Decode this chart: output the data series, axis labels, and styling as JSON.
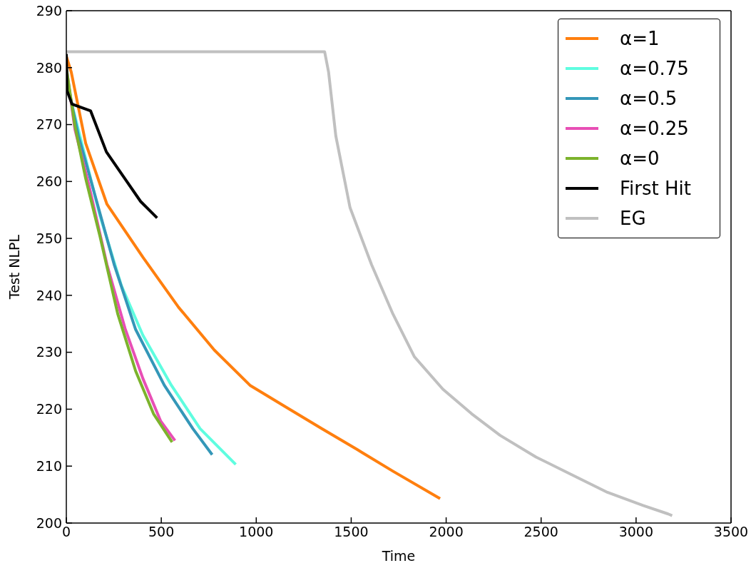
{
  "chart_data": {
    "type": "line",
    "xlabel": "Time",
    "ylabel": "Test NLPL",
    "xlim": [
      0,
      3500
    ],
    "ylim": [
      200,
      290
    ],
    "xticks": [
      0,
      500,
      1000,
      1500,
      2000,
      2500,
      3000,
      3500
    ],
    "yticks": [
      200,
      210,
      220,
      230,
      240,
      250,
      260,
      270,
      280,
      290
    ],
    "grid": false,
    "legend": "top right",
    "marker": "none",
    "line_style": "solid",
    "series": [
      {
        "name": "α=1",
        "color": "#ff7f0e",
        "x": [
          0,
          26,
          102,
          214,
          403,
          591,
          779,
          967,
          1155,
          1344,
          1532,
          1720,
          1968
        ],
        "values": [
          282,
          279.2,
          266.7,
          256,
          246.7,
          237.9,
          230.4,
          224.2,
          220.4,
          216.6,
          212.9,
          209.1,
          204.3
        ]
      },
      {
        "name": "α=0.75",
        "color": "#5ffde0",
        "x": [
          26,
          102,
          177,
          290,
          403,
          553,
          704,
          892
        ],
        "values": [
          274,
          264,
          254,
          241.7,
          233,
          224.2,
          216.6,
          210.3
        ]
      },
      {
        "name": "α=0.5",
        "color": "#3497b8",
        "x": [
          0,
          26,
          64,
          139,
          252,
          365,
          516,
          666,
          768
        ],
        "values": [
          279,
          274,
          268,
          259,
          245.4,
          234,
          224.2,
          216.6,
          212
        ]
      },
      {
        "name": "α=0.25",
        "color": "#e84fb5",
        "x": [
          0,
          45,
          120,
          214,
          309,
          403,
          497,
          572
        ],
        "values": [
          280,
          269.2,
          259.2,
          245.4,
          234.2,
          225.4,
          217.9,
          214.5
        ]
      },
      {
        "name": "α=0",
        "color": "#7cb32c",
        "x": [
          0,
          45,
          102,
          177,
          271,
          365,
          459,
          557
        ],
        "values": [
          280,
          269.8,
          260.5,
          250.4,
          236.7,
          226.7,
          219.2,
          214.2
        ]
      },
      {
        "name": "First Hit",
        "color": "#000000",
        "x": [
          0,
          4,
          30,
          128,
          211,
          391,
          478
        ],
        "values": [
          282.4,
          275.9,
          273.6,
          272.4,
          265.2,
          256.5,
          253.6
        ]
      },
      {
        "name": "EG",
        "color": "#c0c0c0",
        "x": [
          0,
          1360,
          1381,
          1419,
          1494,
          1607,
          1720,
          1833,
          1983,
          2134,
          2284,
          2473,
          2661,
          2849,
          3037,
          3169,
          3190
        ],
        "values": [
          282.8,
          282.8,
          279.2,
          268,
          255.4,
          245.4,
          236.7,
          229.2,
          223.5,
          219.2,
          215.4,
          211.6,
          208.5,
          205.4,
          203.1,
          201.6,
          201.3
        ]
      }
    ]
  }
}
